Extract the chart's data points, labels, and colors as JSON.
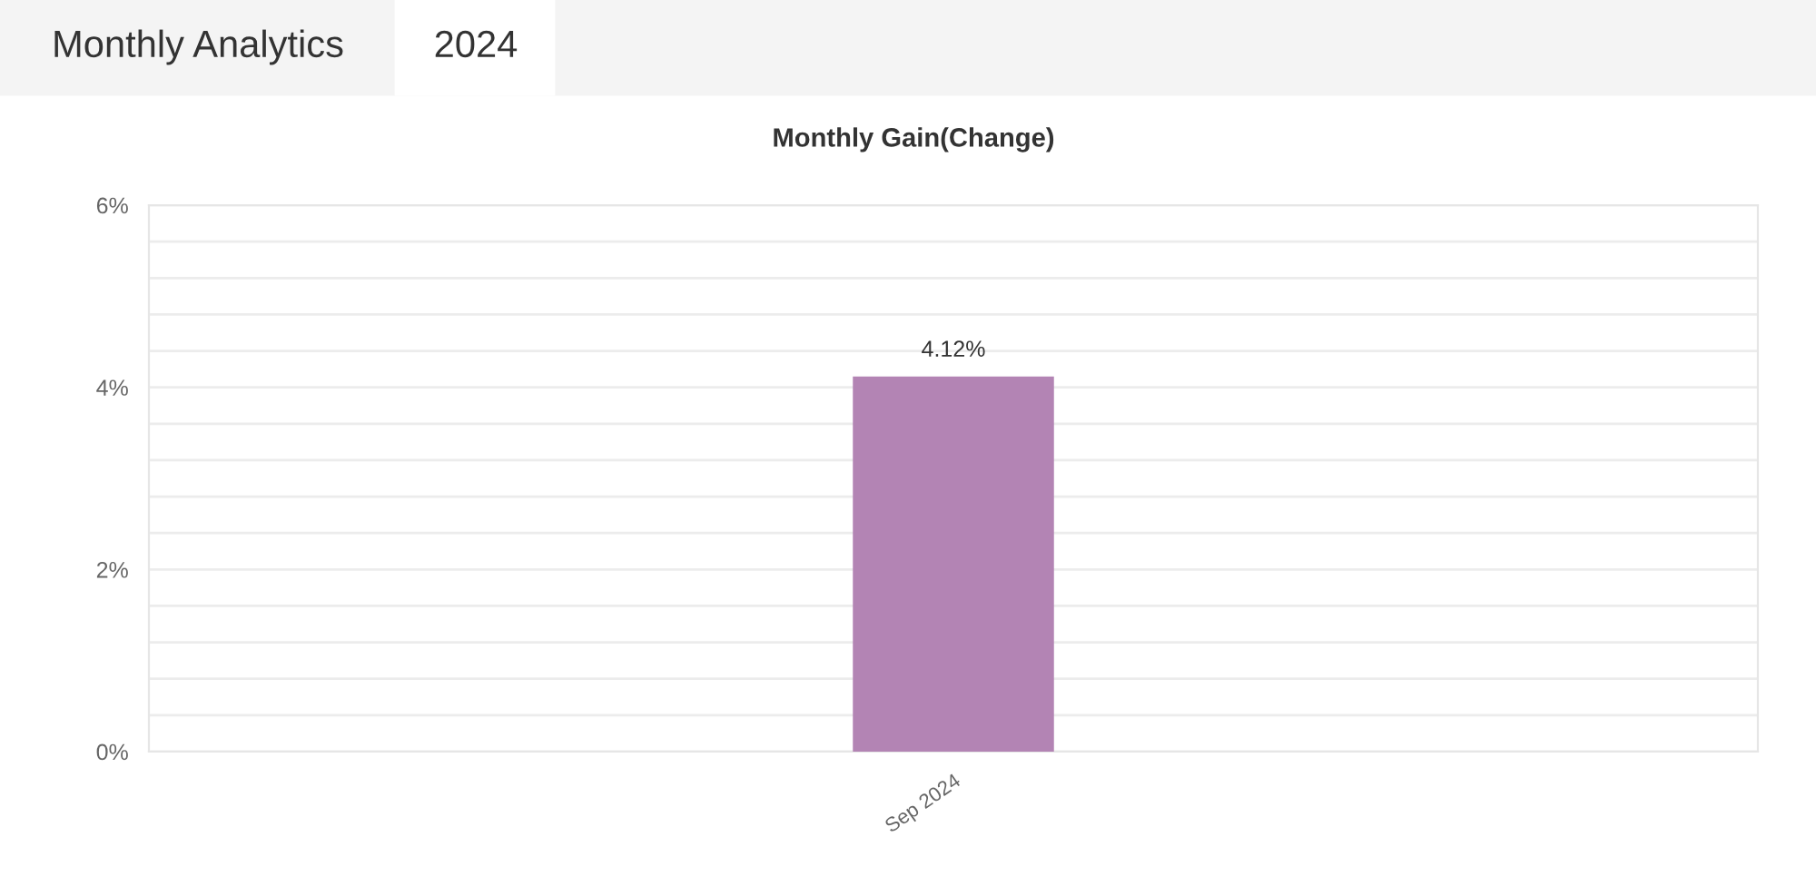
{
  "chart_data": {
    "type": "bar",
    "title": "Monthly Gain(Change)",
    "annotations": [
      "Monthly Analytics",
      "2024"
    ],
    "categories": [
      "Sep 2024"
    ],
    "series": [
      {
        "color": "#b384b4",
        "values": [
          4.12
        ],
        "value_labels": [
          "4.12%"
        ]
      }
    ],
    "ylim": [
      0,
      6
    ],
    "yticks": [
      {
        "value": 0,
        "label": "0%"
      },
      {
        "value": 0.4,
        "label": null
      },
      {
        "value": 0.8,
        "label": null
      },
      {
        "value": 1.2,
        "label": null
      },
      {
        "value": 1.6,
        "label": null
      },
      {
        "value": 2,
        "label": "2%"
      },
      {
        "value": 2.4,
        "label": null
      },
      {
        "value": 2.8,
        "label": null
      },
      {
        "value": 3.2,
        "label": null
      },
      {
        "value": 3.6,
        "label": null
      },
      {
        "value": 4,
        "label": "4%"
      },
      {
        "value": 4.4,
        "label": null
      },
      {
        "value": 4.8,
        "label": null
      },
      {
        "value": 5.2,
        "label": null
      },
      {
        "value": 5.6,
        "label": null
      },
      {
        "value": 6,
        "label": "6%"
      }
    ],
    "grid": true
  }
}
